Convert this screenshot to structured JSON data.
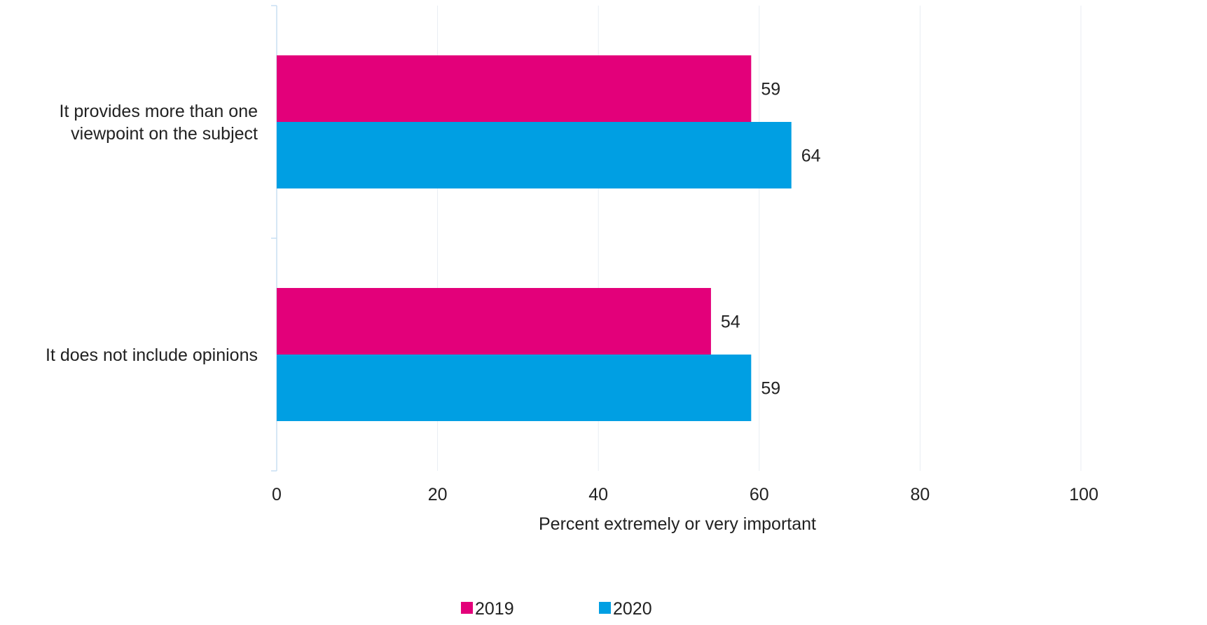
{
  "chart_data": {
    "type": "bar",
    "orientation": "horizontal",
    "categories": [
      [
        "It provides more than one",
        "viewpoint on the subject"
      ],
      [
        "It does not include opinions"
      ]
    ],
    "series": [
      {
        "name": "2019",
        "color": "#E3007A",
        "values": [
          59,
          54
        ]
      },
      {
        "name": "2020",
        "color": "#009FE3",
        "values": [
          64,
          59
        ]
      }
    ],
    "xlabel": "Percent extremely or very important",
    "ylabel": "",
    "xlim": [
      0,
      100
    ],
    "xticks": [
      "0",
      "20",
      "40",
      "60",
      "80",
      "100"
    ],
    "grid": true,
    "data_labels": true,
    "legend_position": "bottom"
  }
}
